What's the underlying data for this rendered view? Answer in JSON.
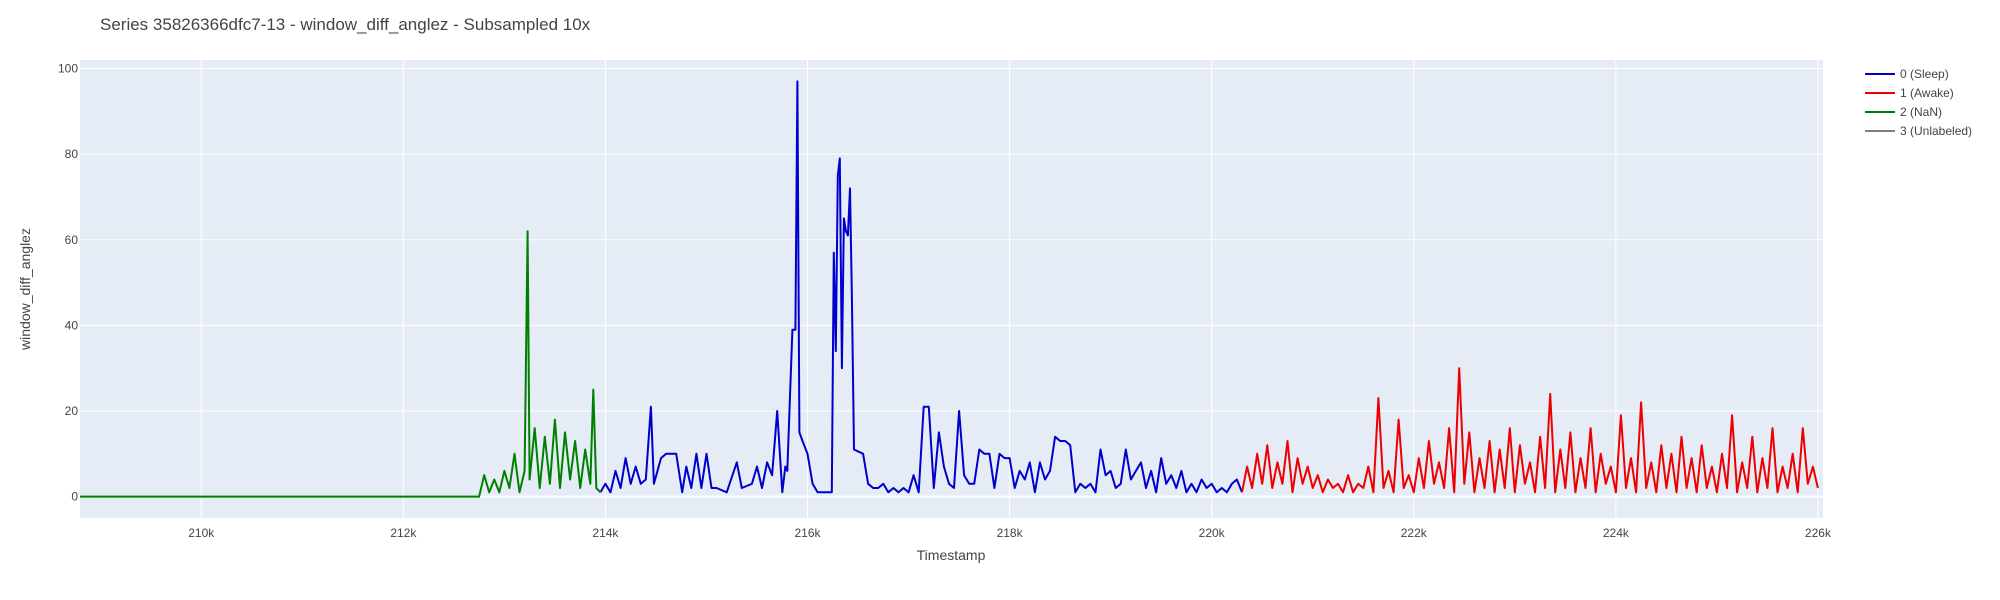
{
  "chart_data": {
    "type": "line",
    "title": "Series 35826366dfc7-13 - window_diff_anglez - Subsampled 10x",
    "xlabel": "Timestamp",
    "ylabel": "window_diff_anglez",
    "xlim": [
      208800,
      226050
    ],
    "ylim": [
      -5,
      102
    ],
    "x_ticks": [
      210000,
      212000,
      214000,
      216000,
      218000,
      220000,
      222000,
      224000,
      226000
    ],
    "x_tick_labels": [
      "210k",
      "212k",
      "214k",
      "216k",
      "218k",
      "220k",
      "222k",
      "224k",
      "226k"
    ],
    "y_ticks": [
      0,
      20,
      40,
      60,
      80,
      100
    ],
    "y_tick_labels": [
      "0",
      "20",
      "40",
      "60",
      "80",
      "100"
    ],
    "grid": true,
    "legend_position": "top-right",
    "series": [
      {
        "name": "0 (Sleep)",
        "color": "#0000cc",
        "points": [
          [
            213950,
            1
          ],
          [
            214000,
            3
          ],
          [
            214050,
            1
          ],
          [
            214100,
            6
          ],
          [
            214150,
            2
          ],
          [
            214200,
            9
          ],
          [
            214250,
            3
          ],
          [
            214300,
            7
          ],
          [
            214350,
            3
          ],
          [
            214400,
            4
          ],
          [
            214450,
            21
          ],
          [
            214480,
            3
          ],
          [
            214550,
            9
          ],
          [
            214600,
            10
          ],
          [
            214700,
            10
          ],
          [
            214760,
            1
          ],
          [
            214800,
            7
          ],
          [
            214850,
            2
          ],
          [
            214900,
            10
          ],
          [
            214950,
            2
          ],
          [
            215000,
            10
          ],
          [
            215050,
            2
          ],
          [
            215100,
            2
          ],
          [
            215200,
            1
          ],
          [
            215300,
            8
          ],
          [
            215350,
            2
          ],
          [
            215450,
            3
          ],
          [
            215500,
            7
          ],
          [
            215550,
            2
          ],
          [
            215600,
            8
          ],
          [
            215650,
            5
          ],
          [
            215700,
            20
          ],
          [
            215750,
            1
          ],
          [
            215780,
            7
          ],
          [
            215800,
            6
          ],
          [
            215850,
            39
          ],
          [
            215880,
            39
          ],
          [
            215900,
            97
          ],
          [
            215920,
            15
          ],
          [
            215950,
            13
          ],
          [
            216000,
            10
          ],
          [
            216050,
            3
          ],
          [
            216100,
            1
          ],
          [
            216200,
            1
          ],
          [
            216240,
            1
          ],
          [
            216260,
            57
          ],
          [
            216280,
            34
          ],
          [
            216300,
            75
          ],
          [
            216320,
            79
          ],
          [
            216340,
            30
          ],
          [
            216360,
            65
          ],
          [
            216380,
            62
          ],
          [
            216400,
            61
          ],
          [
            216420,
            72
          ],
          [
            216440,
            45
          ],
          [
            216460,
            11
          ],
          [
            216550,
            10
          ],
          [
            216600,
            3
          ],
          [
            216650,
            2
          ],
          [
            216700,
            2
          ],
          [
            216750,
            3
          ],
          [
            216800,
            1
          ],
          [
            216850,
            2
          ],
          [
            216900,
            1
          ],
          [
            216950,
            2
          ],
          [
            217000,
            1
          ],
          [
            217050,
            5
          ],
          [
            217100,
            1
          ],
          [
            217150,
            21
          ],
          [
            217200,
            21
          ],
          [
            217250,
            2
          ],
          [
            217300,
            15
          ],
          [
            217350,
            7
          ],
          [
            217400,
            3
          ],
          [
            217450,
            2
          ],
          [
            217500,
            20
          ],
          [
            217550,
            5
          ],
          [
            217600,
            3
          ],
          [
            217650,
            3
          ],
          [
            217700,
            11
          ],
          [
            217750,
            10
          ],
          [
            217800,
            10
          ],
          [
            217850,
            2
          ],
          [
            217900,
            10
          ],
          [
            217950,
            9
          ],
          [
            218000,
            9
          ],
          [
            218050,
            2
          ],
          [
            218100,
            6
          ],
          [
            218150,
            4
          ],
          [
            218200,
            8
          ],
          [
            218250,
            1
          ],
          [
            218300,
            8
          ],
          [
            218350,
            4
          ],
          [
            218400,
            6
          ],
          [
            218450,
            14
          ],
          [
            218500,
            13
          ],
          [
            218550,
            13
          ],
          [
            218600,
            12
          ],
          [
            218650,
            1
          ],
          [
            218700,
            3
          ],
          [
            218750,
            2
          ],
          [
            218800,
            3
          ],
          [
            218850,
            1
          ],
          [
            218900,
            11
          ],
          [
            218950,
            5
          ],
          [
            219000,
            6
          ],
          [
            219050,
            2
          ],
          [
            219100,
            3
          ],
          [
            219150,
            11
          ],
          [
            219200,
            4
          ],
          [
            219250,
            6
          ],
          [
            219300,
            8
          ],
          [
            219350,
            2
          ],
          [
            219400,
            6
          ],
          [
            219450,
            1
          ],
          [
            219500,
            9
          ],
          [
            219550,
            3
          ],
          [
            219600,
            5
          ],
          [
            219650,
            2
          ],
          [
            219700,
            6
          ],
          [
            219750,
            1
          ],
          [
            219800,
            3
          ],
          [
            219850,
            1
          ],
          [
            219900,
            4
          ],
          [
            219950,
            2
          ],
          [
            220000,
            3
          ],
          [
            220050,
            1
          ],
          [
            220100,
            2
          ],
          [
            220150,
            1
          ],
          [
            220200,
            3
          ],
          [
            220250,
            4
          ],
          [
            220300,
            1
          ]
        ]
      },
      {
        "name": "1 (Awake)",
        "color": "#ee0000",
        "points": [
          [
            220300,
            1
          ],
          [
            220350,
            7
          ],
          [
            220400,
            2
          ],
          [
            220450,
            10
          ],
          [
            220500,
            3
          ],
          [
            220550,
            12
          ],
          [
            220600,
            2
          ],
          [
            220650,
            8
          ],
          [
            220700,
            3
          ],
          [
            220750,
            13
          ],
          [
            220800,
            1
          ],
          [
            220850,
            9
          ],
          [
            220900,
            3
          ],
          [
            220950,
            7
          ],
          [
            221000,
            2
          ],
          [
            221050,
            5
          ],
          [
            221100,
            1
          ],
          [
            221150,
            4
          ],
          [
            221200,
            2
          ],
          [
            221250,
            3
          ],
          [
            221300,
            1
          ],
          [
            221350,
            5
          ],
          [
            221400,
            1
          ],
          [
            221450,
            3
          ],
          [
            221500,
            2
          ],
          [
            221550,
            7
          ],
          [
            221600,
            1
          ],
          [
            221650,
            23
          ],
          [
            221700,
            2
          ],
          [
            221750,
            6
          ],
          [
            221800,
            1
          ],
          [
            221850,
            18
          ],
          [
            221900,
            2
          ],
          [
            221950,
            5
          ],
          [
            222000,
            1
          ],
          [
            222050,
            9
          ],
          [
            222100,
            2
          ],
          [
            222150,
            13
          ],
          [
            222200,
            3
          ],
          [
            222250,
            8
          ],
          [
            222300,
            2
          ],
          [
            222350,
            16
          ],
          [
            222400,
            1
          ],
          [
            222450,
            30
          ],
          [
            222500,
            3
          ],
          [
            222550,
            15
          ],
          [
            222600,
            1
          ],
          [
            222650,
            9
          ],
          [
            222700,
            2
          ],
          [
            222750,
            13
          ],
          [
            222800,
            1
          ],
          [
            222850,
            11
          ],
          [
            222900,
            2
          ],
          [
            222950,
            16
          ],
          [
            223000,
            1
          ],
          [
            223050,
            12
          ],
          [
            223100,
            3
          ],
          [
            223150,
            8
          ],
          [
            223200,
            1
          ],
          [
            223250,
            14
          ],
          [
            223300,
            2
          ],
          [
            223350,
            24
          ],
          [
            223400,
            1
          ],
          [
            223450,
            11
          ],
          [
            223500,
            2
          ],
          [
            223550,
            15
          ],
          [
            223600,
            1
          ],
          [
            223650,
            9
          ],
          [
            223700,
            2
          ],
          [
            223750,
            16
          ],
          [
            223800,
            1
          ],
          [
            223850,
            10
          ],
          [
            223900,
            3
          ],
          [
            223950,
            7
          ],
          [
            224000,
            1
          ],
          [
            224050,
            19
          ],
          [
            224100,
            2
          ],
          [
            224150,
            9
          ],
          [
            224200,
            1
          ],
          [
            224250,
            22
          ],
          [
            224300,
            2
          ],
          [
            224350,
            8
          ],
          [
            224400,
            1
          ],
          [
            224450,
            12
          ],
          [
            224500,
            2
          ],
          [
            224550,
            10
          ],
          [
            224600,
            1
          ],
          [
            224650,
            14
          ],
          [
            224700,
            2
          ],
          [
            224750,
            9
          ],
          [
            224800,
            1
          ],
          [
            224850,
            12
          ],
          [
            224900,
            2
          ],
          [
            224950,
            7
          ],
          [
            225000,
            1
          ],
          [
            225050,
            10
          ],
          [
            225100,
            2
          ],
          [
            225150,
            19
          ],
          [
            225200,
            1
          ],
          [
            225250,
            8
          ],
          [
            225300,
            2
          ],
          [
            225350,
            14
          ],
          [
            225400,
            1
          ],
          [
            225450,
            9
          ],
          [
            225500,
            2
          ],
          [
            225550,
            16
          ],
          [
            225600,
            1
          ],
          [
            225650,
            7
          ],
          [
            225700,
            2
          ],
          [
            225750,
            10
          ],
          [
            225800,
            1
          ],
          [
            225850,
            16
          ],
          [
            225900,
            3
          ],
          [
            225950,
            7
          ],
          [
            226000,
            2
          ]
        ]
      },
      {
        "name": "2 (NaN)",
        "color": "#008000",
        "points": [
          [
            208800,
            0
          ],
          [
            212750,
            0
          ],
          [
            212800,
            5
          ],
          [
            212850,
            1
          ],
          [
            212900,
            4
          ],
          [
            212950,
            1
          ],
          [
            213000,
            6
          ],
          [
            213050,
            2
          ],
          [
            213100,
            10
          ],
          [
            213150,
            1
          ],
          [
            213200,
            6
          ],
          [
            213230,
            62
          ],
          [
            213250,
            4
          ],
          [
            213300,
            16
          ],
          [
            213350,
            2
          ],
          [
            213400,
            14
          ],
          [
            213450,
            3
          ],
          [
            213500,
            18
          ],
          [
            213550,
            2
          ],
          [
            213600,
            15
          ],
          [
            213650,
            4
          ],
          [
            213700,
            13
          ],
          [
            213750,
            2
          ],
          [
            213800,
            11
          ],
          [
            213850,
            3
          ],
          [
            213880,
            25
          ],
          [
            213910,
            2
          ],
          [
            213950,
            1
          ]
        ]
      },
      {
        "name": "3 (Unlabeled)",
        "color": "#808080",
        "points": []
      }
    ]
  }
}
